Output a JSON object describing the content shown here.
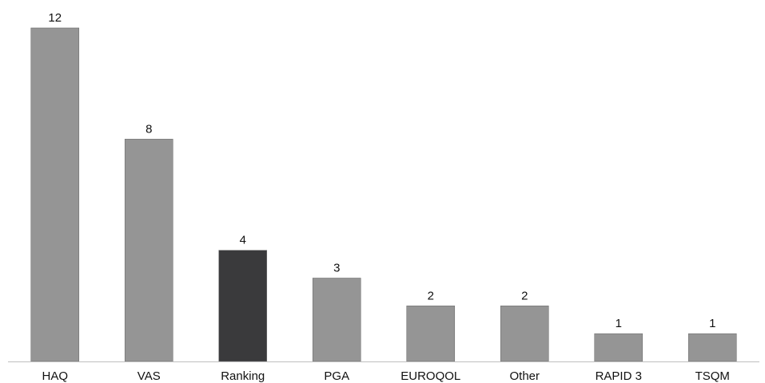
{
  "chart_data": {
    "type": "bar",
    "categories": [
      "HAQ",
      "VAS",
      "Ranking",
      "PGA",
      "EUROQOL",
      "Other",
      "RAPID 3",
      "TSQM"
    ],
    "values": [
      12,
      8,
      4,
      3,
      2,
      2,
      1,
      1
    ],
    "title": "",
    "xlabel": "",
    "ylabel": "",
    "ylim": [
      0,
      12
    ],
    "grid": false,
    "legend": "none",
    "data_labels": true,
    "bar_color": "#959595",
    "highlight_category": "Ranking",
    "highlight_color": "#3a3a3c"
  }
}
